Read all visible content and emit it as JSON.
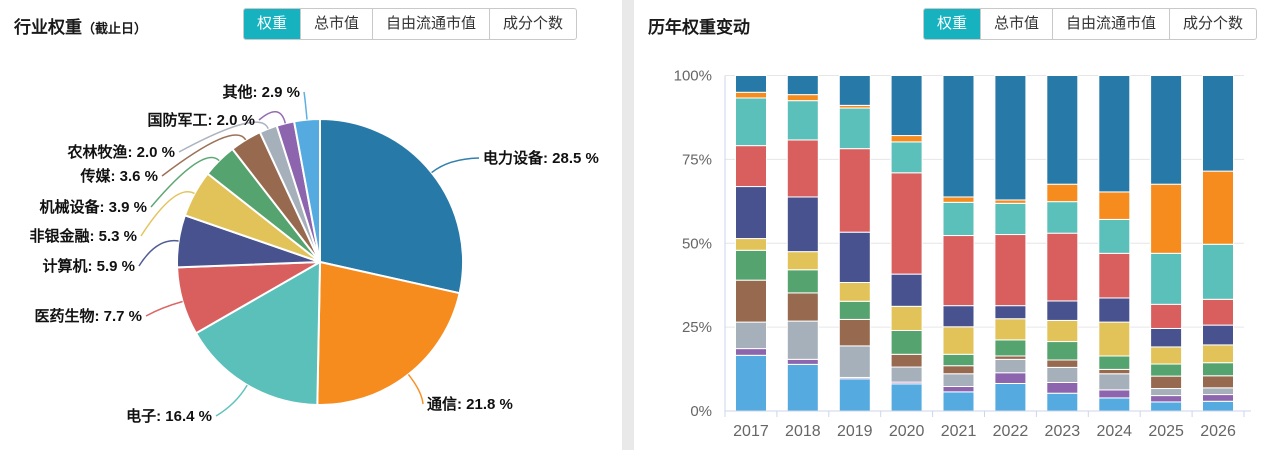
{
  "left_panel": {
    "title": "行业权重",
    "title_suffix": "（截止日）",
    "tabs": [
      {
        "key": "weight",
        "label": "权重",
        "active": true
      },
      {
        "key": "total-market-cap",
        "label": "总市值",
        "active": false
      },
      {
        "key": "free-float-market-cap",
        "label": "自由流通市值",
        "active": false
      },
      {
        "key": "constituent-count",
        "label": "成分个数",
        "active": false
      }
    ]
  },
  "right_panel": {
    "title": "历年权重变动",
    "tabs": [
      {
        "key": "weight",
        "label": "权重",
        "active": true
      },
      {
        "key": "total-market-cap",
        "label": "总市值",
        "active": false
      },
      {
        "key": "free-float-market-cap",
        "label": "自由流通市值",
        "active": false
      },
      {
        "key": "constituent-count",
        "label": "成分个数",
        "active": false
      }
    ]
  },
  "colors": {
    "active_tab": "#17b2bf",
    "tab_border": "#c9c9c9",
    "axis_line": "#ccd6eb",
    "grid_line": "#e6e6e6",
    "axis_label": "#666666",
    "pie_label_text": "#111111",
    "panel_divider": "#e9e9e9"
  },
  "chart_data": [
    {
      "type": "pie",
      "title": "行业权重（截止日）",
      "label_format": "{name}: {value} %",
      "series": [
        {
          "key": "power-equipment",
          "name": "电力设备",
          "value": 28.5,
          "color": "#2779a8"
        },
        {
          "key": "telecom",
          "name": "通信",
          "value": 21.8,
          "color": "#f78c1e"
        },
        {
          "key": "electronics",
          "name": "电子",
          "value": 16.4,
          "color": "#5bbfba"
        },
        {
          "key": "pharma-bio",
          "name": "医药生物",
          "value": 7.7,
          "color": "#d95f5f"
        },
        {
          "key": "computer",
          "name": "计算机",
          "value": 5.9,
          "color": "#47528e"
        },
        {
          "key": "non-bank-finance",
          "name": "非银金融",
          "value": 5.3,
          "color": "#e2c35a"
        },
        {
          "key": "machinery",
          "name": "机械设备",
          "value": 3.9,
          "color": "#55a36e"
        },
        {
          "key": "media",
          "name": "传媒",
          "value": 3.6,
          "color": "#97694e"
        },
        {
          "key": "agriculture",
          "name": "农林牧渔",
          "value": 2.0,
          "color": "#a6b0ba"
        },
        {
          "key": "defense-military",
          "name": "国防军工",
          "value": 2.0,
          "color": "#8d64ae"
        },
        {
          "key": "other",
          "name": "其他",
          "value": 2.9,
          "color": "#55abe0"
        }
      ]
    },
    {
      "type": "bar",
      "stacked": true,
      "title": "历年权重变动",
      "unit": "%",
      "ylim": [
        0,
        100
      ],
      "y_ticks": [
        "0%",
        "25%",
        "50%",
        "75%",
        "100%"
      ],
      "grid": true,
      "legend": "none",
      "categories": [
        "2017",
        "2018",
        "2019",
        "2020",
        "2021",
        "2022",
        "2023",
        "2024",
        "2025",
        "2026"
      ],
      "series": [
        {
          "key": "other",
          "name": "其他",
          "color": "#55abe0",
          "values": [
            16.6,
            13.9,
            9.6,
            8.1,
            5.7,
            8.2,
            5.3,
            3.9,
            2.7,
            2.9
          ]
        },
        {
          "key": "defense-military",
          "name": "国防军工",
          "color": "#8d64ae",
          "values": [
            2.0,
            1.5,
            0.4,
            0.5,
            1.6,
            3.2,
            3.2,
            2.4,
            1.9,
            2.0
          ]
        },
        {
          "key": "agriculture",
          "name": "农林牧渔",
          "color": "#a6b0ba",
          "values": [
            7.9,
            11.4,
            9.4,
            4.5,
            3.8,
            4.0,
            4.5,
            4.8,
            2.1,
            2.0
          ]
        },
        {
          "key": "media",
          "name": "传媒",
          "color": "#97694e",
          "values": [
            12.5,
            8.4,
            7.9,
            3.8,
            2.4,
            1.0,
            2.2,
            1.3,
            3.7,
            3.6
          ]
        },
        {
          "key": "machinery",
          "name": "机械设备",
          "color": "#55a36e",
          "values": [
            8.9,
            6.9,
            5.4,
            7.1,
            3.4,
            4.8,
            5.5,
            4.0,
            3.6,
            3.9
          ]
        },
        {
          "key": "non-bank-finance",
          "name": "非银金融",
          "color": "#e2c35a",
          "values": [
            3.5,
            5.4,
            5.6,
            7.2,
            8.2,
            6.3,
            6.3,
            10.1,
            5.1,
            5.3
          ]
        },
        {
          "key": "computer",
          "name": "计算机",
          "color": "#47528e",
          "values": [
            15.5,
            16.3,
            15.0,
            9.6,
            6.3,
            3.9,
            5.8,
            7.2,
            5.5,
            5.9
          ]
        },
        {
          "key": "pharma-bio",
          "name": "医药生物",
          "color": "#d95f5f",
          "values": [
            12.2,
            17.0,
            24.9,
            30.2,
            20.9,
            21.2,
            20.2,
            13.3,
            7.2,
            7.7
          ]
        },
        {
          "key": "electronics",
          "name": "电子",
          "color": "#5bbfba",
          "values": [
            14.2,
            11.7,
            12.1,
            9.2,
            9.9,
            9.3,
            9.4,
            10.1,
            15.2,
            16.4
          ]
        },
        {
          "key": "telecom",
          "name": "通信",
          "color": "#f78c1e",
          "values": [
            1.7,
            1.8,
            0.8,
            1.9,
            1.6,
            1.0,
            5.2,
            8.2,
            20.6,
            21.8
          ]
        },
        {
          "key": "power-equipment",
          "name": "电力设备",
          "color": "#2779a8",
          "values": [
            5.0,
            5.7,
            8.9,
            17.9,
            36.2,
            37.1,
            32.4,
            34.7,
            32.4,
            28.5
          ]
        }
      ]
    }
  ]
}
